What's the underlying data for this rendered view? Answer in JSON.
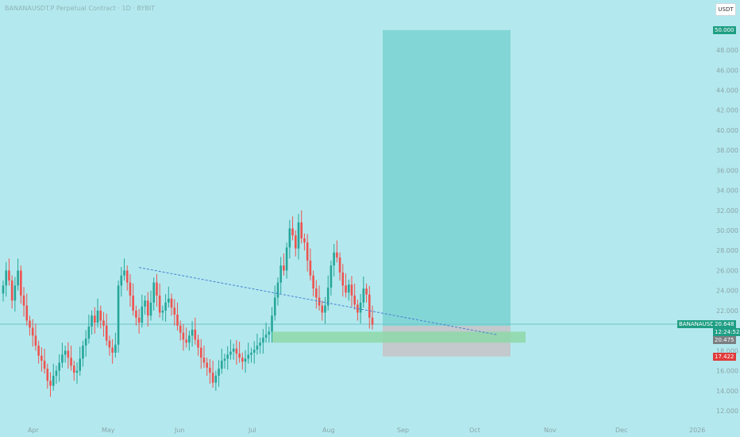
{
  "header": {
    "title": "BANANAUSDT.P Perpetual Contract · 1D · BYBIT",
    "currency": "USDT"
  },
  "colors": {
    "background": "#b3e9ee",
    "up": "#26a69a",
    "down": "#ef5350",
    "target_zone": "#83d6d6",
    "stop_zone": "#c3c9cc",
    "support_zone": "#8ed8a8",
    "trendline": "#4a7fd4",
    "price_line": "#6cc5c8"
  },
  "price_axis": {
    "labels": [
      "48.000",
      "46.000",
      "44.000",
      "42.000",
      "40.000",
      "38.000",
      "36.000",
      "34.000",
      "32.000",
      "30.000",
      "28.000",
      "26.000",
      "24.000",
      "22.000",
      "20.000",
      "18.000",
      "16.000",
      "14.000",
      "12.000"
    ]
  },
  "time_axis": {
    "labels": [
      "Apr",
      "May",
      "Jun",
      "Jul",
      "Aug",
      "Sep",
      "Oct",
      "Nov",
      "Dec",
      "2026"
    ]
  },
  "price_tags": {
    "target": "50.000",
    "symbol": "BANANAUSDT.P",
    "last": "20.648",
    "countdown": "12:24:52",
    "entry": "20.475",
    "stop": "17.422"
  },
  "chart_data": {
    "type": "candlestick",
    "symbol": "BANANAUSDT.P",
    "interval": "1D",
    "ylim": [
      11.5,
      50.5
    ],
    "y_axis_ticks": [
      12,
      14,
      16,
      18,
      20,
      22,
      24,
      26,
      28,
      30,
      32,
      34,
      36,
      38,
      40,
      42,
      44,
      46,
      48
    ],
    "x_axis_ticks": [
      "Apr",
      "May",
      "Jun",
      "Jul",
      "Aug",
      "Sep",
      "Oct",
      "Nov",
      "Dec",
      "2026"
    ],
    "last_price": 20.648,
    "long_position": {
      "entry": 20.475,
      "target": 50.0,
      "stop": 17.422
    },
    "support_zone": [
      18.8,
      19.9
    ],
    "trendline": {
      "from": [
        "2025-05-02",
        26.3
      ],
      "to": [
        "2025-08-31",
        19.6
      ]
    },
    "series": [
      {
        "dates": "2025-03-17..2025-08-26 (daily)",
        "close_approx": [
          24.5,
          26,
          25,
          23,
          24.5,
          26,
          23.5,
          22.5,
          21,
          20.3,
          19.5,
          18.5,
          17.5,
          17,
          16.2,
          15,
          14.5,
          15.5,
          16,
          16.8,
          17.6,
          18,
          17.3,
          16.5,
          15.8,
          16,
          17.2,
          18.5,
          19.2,
          20.4,
          21.5,
          20.8,
          22,
          21,
          20.5,
          19,
          18.3,
          17.8,
          18.6,
          24.5,
          25.5,
          26,
          24.8,
          23.5,
          22,
          21.3,
          20.8,
          22.4,
          23,
          21.5,
          22.8,
          24.8,
          23.5,
          21.8,
          22,
          22.8,
          23.2,
          22.3,
          21.6,
          20.5,
          19.8,
          19.1,
          18.8,
          19.5,
          20.1,
          19.1,
          18.3,
          17.3,
          16.8,
          16.3,
          15.8,
          14.8,
          15.5,
          16.2,
          17,
          17.2,
          17.6,
          17.9,
          18.2,
          17.7,
          17.3,
          16.9,
          17.2,
          17.6,
          17.8,
          18.1,
          18.5,
          18.8,
          19.3,
          19.6,
          19.9,
          21.5,
          23.3,
          24.8,
          26.5,
          26,
          28.3,
          30.2,
          29.5,
          28.2,
          30.8,
          29.2,
          28.8,
          27,
          25.5,
          24.2,
          23.3,
          22.5,
          21.8,
          22.5,
          24.3,
          26.5,
          27.8,
          27.3,
          25.8,
          24.5,
          23.8,
          24.6,
          23.5,
          22.6,
          21.8,
          22.8,
          24.2,
          23.6,
          21.3,
          20.6
        ]
      }
    ]
  }
}
